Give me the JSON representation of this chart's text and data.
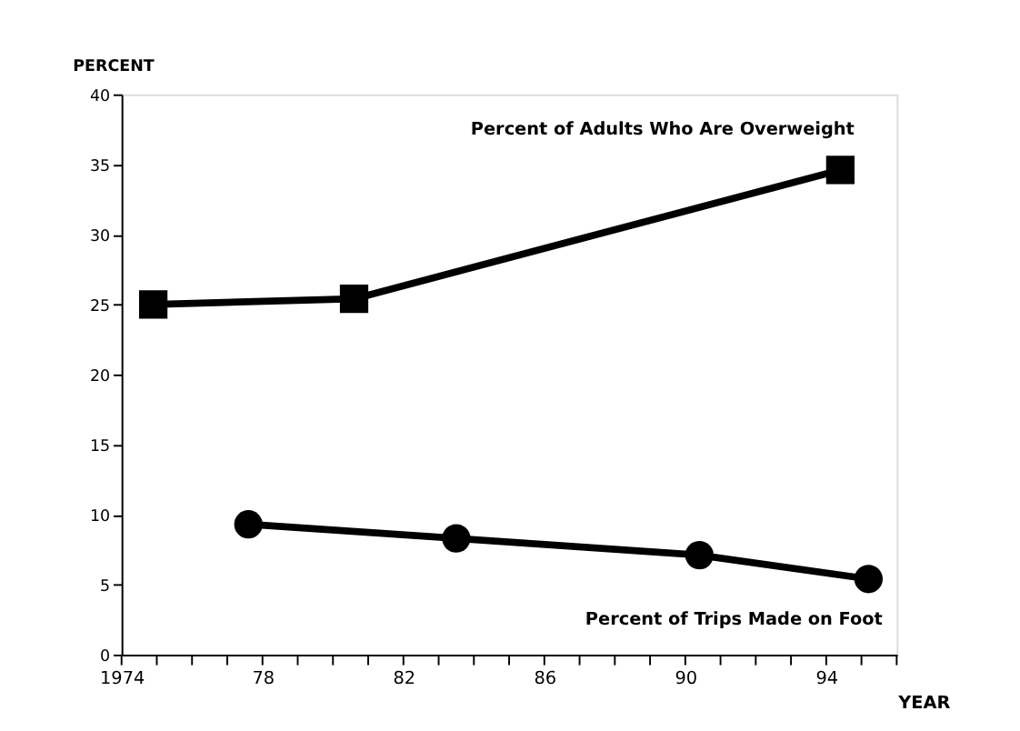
{
  "chart_data": {
    "type": "line",
    "xlabel": "YEAR",
    "ylabel": "PERCENT",
    "xlim": [
      1974,
      1996
    ],
    "xticks": [
      {
        "value": 1974,
        "label": "1974"
      },
      {
        "value": 1975,
        "label": null
      },
      {
        "value": 1976,
        "label": null
      },
      {
        "value": 1977,
        "label": null
      },
      {
        "value": 1978,
        "label": "78"
      },
      {
        "value": 1979,
        "label": null
      },
      {
        "value": 1980,
        "label": null
      },
      {
        "value": 1981,
        "label": null
      },
      {
        "value": 1982,
        "label": "82"
      },
      {
        "value": 1983,
        "label": null
      },
      {
        "value": 1984,
        "label": null
      },
      {
        "value": 1985,
        "label": null
      },
      {
        "value": 1986,
        "label": "86"
      },
      {
        "value": 1987,
        "label": null
      },
      {
        "value": 1988,
        "label": null
      },
      {
        "value": 1989,
        "label": null
      },
      {
        "value": 1990,
        "label": "90"
      },
      {
        "value": 1991,
        "label": null
      },
      {
        "value": 1992,
        "label": null
      },
      {
        "value": 1993,
        "label": null
      },
      {
        "value": 1994,
        "label": "94"
      },
      {
        "value": 1995,
        "label": null
      },
      {
        "value": 1996,
        "label": null
      }
    ],
    "ylim": [
      0,
      40
    ],
    "yticks": [
      0,
      5,
      10,
      15,
      20,
      25,
      30,
      35,
      40
    ],
    "grid": false,
    "series": [
      {
        "name": "Percent of Adults Who Are Overweight",
        "color": "#000000",
        "marker": "square",
        "x": [
          1974.9,
          1980.6,
          1994.4
        ],
        "values": [
          25,
          25.4,
          34.6
        ]
      },
      {
        "name": "Percent of Trips Made on Foot",
        "color": "#000000",
        "marker": "circle",
        "x": [
          1977.6,
          1983.5,
          1990.4,
          1995.2
        ],
        "values": [
          9.3,
          8.3,
          7.1,
          5.4
        ]
      }
    ]
  }
}
